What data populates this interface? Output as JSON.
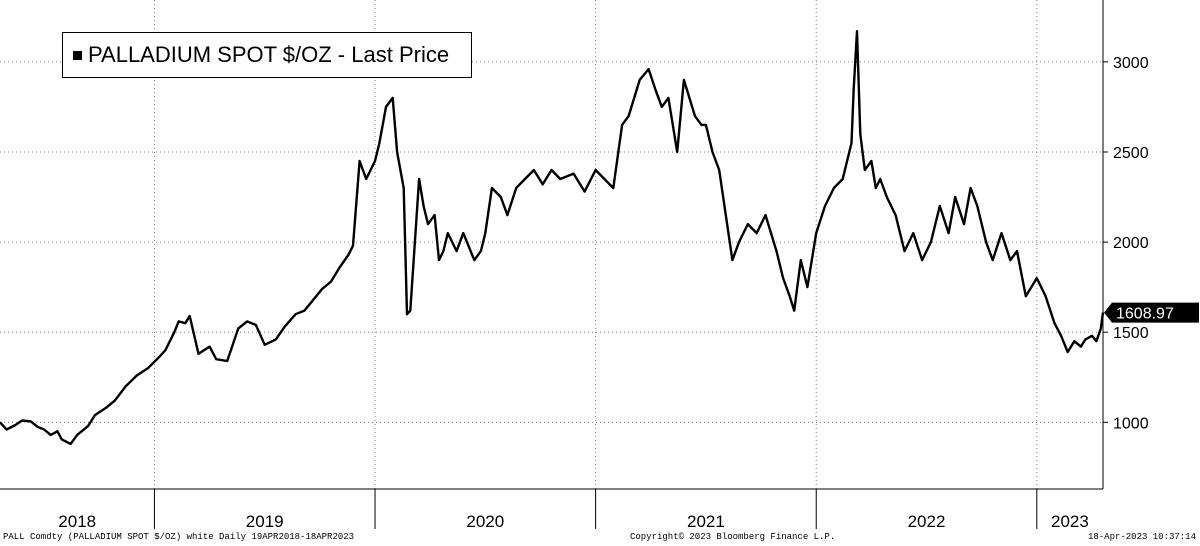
{
  "legend": {
    "label": "PALLADIUM SPOT $/OZ - Last Price"
  },
  "footer": {
    "left": "PALL Comdty (PALLADIUM SPOT $/OZ) white  Daily 19APR2018-18APR2023",
    "center": "Copyright© 2023 Bloomberg Finance L.P.",
    "right": "18-Apr-2023 10:37:14"
  },
  "chart_data": {
    "type": "line",
    "title": "PALLADIUM SPOT $/OZ - Last Price",
    "xlabel": "",
    "ylabel": "",
    "x_tick_labels": [
      "2018",
      "2019",
      "2020",
      "2021",
      "2022",
      "2023"
    ],
    "y_ticks": [
      1000,
      1500,
      2000,
      2500,
      3000
    ],
    "ylim": [
      630,
      3310
    ],
    "xlim": [
      2018.3,
      2023.3
    ],
    "grid": true,
    "legend_position": "top-left",
    "last_value_label": "1608.97",
    "colors": {
      "line": "#000000",
      "grid": "#7f7f7f",
      "axis": "#000000"
    },
    "series": [
      {
        "name": "PALLADIUM SPOT $/OZ - Last Price",
        "x": [
          2018.3,
          2018.33,
          2018.37,
          2018.4,
          2018.44,
          2018.47,
          2018.5,
          2018.53,
          2018.56,
          2018.58,
          2018.62,
          2018.65,
          2018.7,
          2018.73,
          2018.78,
          2018.82,
          2018.87,
          2018.92,
          2018.97,
          2019.02,
          2019.05,
          2019.09,
          2019.11,
          2019.14,
          2019.16,
          2019.2,
          2019.25,
          2019.28,
          2019.33,
          2019.38,
          2019.42,
          2019.46,
          2019.5,
          2019.55,
          2019.59,
          2019.64,
          2019.68,
          2019.72,
          2019.76,
          2019.8,
          2019.84,
          2019.88,
          2019.9,
          2019.93,
          2019.96,
          2020.0,
          2020.02,
          2020.05,
          2020.08,
          2020.1,
          2020.13,
          2020.145,
          2020.16,
          2020.2,
          2020.22,
          2020.24,
          2020.27,
          2020.29,
          2020.31,
          2020.33,
          2020.37,
          2020.4,
          2020.45,
          2020.48,
          2020.5,
          2020.53,
          2020.57,
          2020.6,
          2020.64,
          2020.68,
          2020.72,
          2020.76,
          2020.8,
          2020.84,
          2020.9,
          2020.95,
          2021.0,
          2021.04,
          2021.08,
          2021.12,
          2021.15,
          2021.2,
          2021.24,
          2021.27,
          2021.3,
          2021.33,
          2021.37,
          2021.4,
          2021.45,
          2021.48,
          2021.5,
          2021.53,
          2021.56,
          2021.59,
          2021.62,
          2021.65,
          2021.69,
          2021.73,
          2021.77,
          2021.82,
          2021.85,
          2021.88,
          2021.9,
          2021.93,
          2021.96,
          2022.0,
          2022.04,
          2022.08,
          2022.12,
          2022.16,
          2022.17,
          2022.185,
          2022.2,
          2022.22,
          2022.25,
          2022.27,
          2022.29,
          2022.32,
          2022.36,
          2022.4,
          2022.44,
          2022.48,
          2022.52,
          2022.56,
          2022.6,
          2022.63,
          2022.67,
          2022.7,
          2022.73,
          2022.77,
          2022.8,
          2022.84,
          2022.88,
          2022.91,
          2022.95,
          2023.0,
          2023.04,
          2023.08,
          2023.11,
          2023.14,
          2023.17,
          2023.2,
          2023.22,
          2023.25,
          2023.27,
          2023.29,
          2023.3
        ],
        "y": [
          1000,
          960,
          985,
          1010,
          1005,
          975,
          960,
          930,
          950,
          905,
          880,
          930,
          980,
          1040,
          1080,
          1120,
          1200,
          1260,
          1300,
          1360,
          1400,
          1500,
          1560,
          1550,
          1590,
          1380,
          1420,
          1350,
          1340,
          1520,
          1560,
          1540,
          1430,
          1460,
          1530,
          1600,
          1620,
          1680,
          1740,
          1780,
          1860,
          1930,
          1980,
          2450,
          2350,
          2450,
          2550,
          2750,
          2800,
          2500,
          2300,
          1600,
          1620,
          2350,
          2200,
          2100,
          2150,
          1900,
          1950,
          2050,
          1950,
          2050,
          1900,
          1950,
          2050,
          2300,
          2250,
          2150,
          2300,
          2350,
          2400,
          2320,
          2400,
          2350,
          2380,
          2280,
          2400,
          2350,
          2300,
          2650,
          2700,
          2900,
          2960,
          2850,
          2750,
          2800,
          2500,
          2900,
          2700,
          2650,
          2650,
          2500,
          2400,
          2150,
          1900,
          2000,
          2100,
          2050,
          2150,
          1950,
          1800,
          1700,
          1620,
          1900,
          1750,
          2050,
          2200,
          2300,
          2350,
          2550,
          2850,
          3170,
          2600,
          2400,
          2450,
          2300,
          2350,
          2250,
          2150,
          1950,
          2050,
          1900,
          2000,
          2200,
          2050,
          2250,
          2100,
          2300,
          2200,
          2000,
          1900,
          2050,
          1900,
          1950,
          1700,
          1800,
          1700,
          1550,
          1480,
          1390,
          1450,
          1420,
          1460,
          1480,
          1450,
          1520,
          1608.97
        ]
      }
    ]
  }
}
